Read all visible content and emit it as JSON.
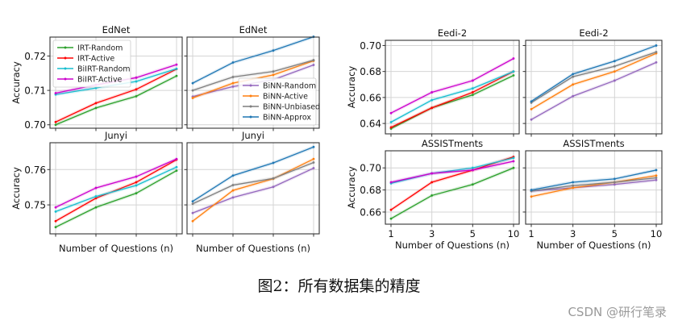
{
  "caption": "图2：所有数据集的精度",
  "watermark": "CSDN @研行笔录",
  "chart_data": [
    {
      "type": "line",
      "title": "EdNet",
      "group": "left",
      "xlabel": "",
      "ylabel": "Accuracy",
      "x": [
        1,
        3,
        5,
        10
      ],
      "xticklabels": [],
      "ylim": [
        0.699,
        0.7255
      ],
      "yticks": [
        0.7,
        0.71,
        0.72
      ],
      "yticklabels": [
        "0.70",
        "0.71",
        "0.72"
      ],
      "legend": {
        "position": "upper left",
        "entries": [
          "IRT-Random",
          "IRT-Active",
          "BiIRT-Random",
          "BiIRT-Active"
        ]
      },
      "series": [
        {
          "name": "IRT-Random",
          "color": "#2ca02c",
          "values": [
            0.7,
            0.7049,
            0.7083,
            0.7142
          ]
        },
        {
          "name": "IRT-Active",
          "color": "#ff0000",
          "values": [
            0.7008,
            0.7063,
            0.7103,
            0.7162
          ]
        },
        {
          "name": "BiIRT-Random",
          "color": "#17becf",
          "values": [
            0.7088,
            0.7107,
            0.7126,
            0.7163
          ]
        },
        {
          "name": "BiIRT-Active",
          "color": "#cc00cc",
          "values": [
            0.7092,
            0.7116,
            0.7137,
            0.7175
          ]
        }
      ]
    },
    {
      "type": "line",
      "title": "EdNet",
      "group": "left",
      "xlabel": "",
      "ylabel": "",
      "x": [
        1,
        3,
        5,
        10
      ],
      "xticklabels": [],
      "ylim": [
        0.699,
        0.7255
      ],
      "yticks": [
        0.7,
        0.71,
        0.72
      ],
      "yticklabels": [],
      "legend": {
        "position": "lower right",
        "entries": [
          "BiNN-Random",
          "BiNN-Active",
          "BiNN-Unbiased",
          "BiNN-Approx"
        ]
      },
      "series": [
        {
          "name": "BiNN-Random",
          "color": "#9467bd",
          "values": [
            0.7082,
            0.7111,
            0.7131,
            0.7174
          ]
        },
        {
          "name": "BiNN-Active",
          "color": "#ff7f0e",
          "values": [
            0.7078,
            0.7121,
            0.7145,
            0.7186
          ]
        },
        {
          "name": "BiNN-Unbiased",
          "color": "#7f7f7f",
          "values": [
            0.71,
            0.7139,
            0.7155,
            0.7188
          ]
        },
        {
          "name": "BiNN-Approx",
          "color": "#1f77b4",
          "values": [
            0.7121,
            0.7181,
            0.7216,
            0.7256
          ]
        }
      ]
    },
    {
      "type": "line",
      "title": "Junyi",
      "group": "left",
      "xlabel": "Number of Questions (n)",
      "ylabel": "Accuracy",
      "x": [
        1,
        3,
        5,
        10
      ],
      "xticklabels": [],
      "ylim": [
        0.7418,
        0.7676
      ],
      "yticks": [
        0.75,
        0.76
      ],
      "yticklabels": [
        "0.75",
        "0.76"
      ],
      "series": [
        {
          "name": "IRT-Random",
          "color": "#2ca02c",
          "values": [
            0.7437,
            0.7493,
            0.7533,
            0.7597
          ]
        },
        {
          "name": "IRT-Active",
          "color": "#ff0000",
          "values": [
            0.7454,
            0.7519,
            0.7564,
            0.7628
          ]
        },
        {
          "name": "BiIRT-Random",
          "color": "#17becf",
          "values": [
            0.7481,
            0.7524,
            0.7555,
            0.7607
          ]
        },
        {
          "name": "BiIRT-Active",
          "color": "#cc00cc",
          "values": [
            0.7493,
            0.7548,
            0.758,
            0.763
          ]
        }
      ]
    },
    {
      "type": "line",
      "title": "Junyi",
      "group": "left",
      "xlabel": "Number of Questions (n)",
      "ylabel": "",
      "x": [
        1,
        3,
        5,
        10
      ],
      "xticklabels": [],
      "ylim": [
        0.7418,
        0.7676
      ],
      "yticks": [
        0.75,
        0.76
      ],
      "yticklabels": [],
      "series": [
        {
          "name": "BiNN-Random",
          "color": "#9467bd",
          "values": [
            0.7477,
            0.7521,
            0.7551,
            0.7604
          ]
        },
        {
          "name": "BiNN-Active",
          "color": "#ff7f0e",
          "values": [
            0.7454,
            0.7541,
            0.7574,
            0.763
          ]
        },
        {
          "name": "BiNN-Unbiased",
          "color": "#7f7f7f",
          "values": [
            0.7503,
            0.7556,
            0.7575,
            0.762
          ]
        },
        {
          "name": "BiNN-Approx",
          "color": "#1f77b4",
          "values": [
            0.751,
            0.7583,
            0.7619,
            0.7664
          ]
        }
      ]
    },
    {
      "type": "line",
      "title": "Eedi-2",
      "group": "right",
      "xlabel": "",
      "ylabel": "Accuracy",
      "x": [
        1,
        3,
        5,
        10
      ],
      "xticklabels": [],
      "ylim": [
        0.632,
        0.704
      ],
      "yticks": [
        0.64,
        0.66,
        0.68,
        0.7
      ],
      "yticklabels": [
        "0.64",
        "0.66",
        "0.68",
        "0.70"
      ],
      "series": [
        {
          "name": "IRT-Random",
          "color": "#2ca02c",
          "values": [
            0.636,
            0.652,
            0.662,
            0.677
          ]
        },
        {
          "name": "IRT-Active",
          "color": "#ff0000",
          "values": [
            0.637,
            0.652,
            0.664,
            0.68
          ]
        },
        {
          "name": "BiIRT-Random",
          "color": "#17becf",
          "values": [
            0.641,
            0.658,
            0.667,
            0.68
          ]
        },
        {
          "name": "BiIRT-Active",
          "color": "#cc00cc",
          "values": [
            0.648,
            0.664,
            0.673,
            0.69
          ]
        }
      ]
    },
    {
      "type": "line",
      "title": "Eedi-2",
      "group": "right",
      "xlabel": "",
      "ylabel": "",
      "x": [
        1,
        3,
        5,
        10
      ],
      "xticklabels": [],
      "ylim": [
        0.632,
        0.704
      ],
      "yticks": [
        0.64,
        0.66,
        0.68,
        0.7
      ],
      "yticklabels": [],
      "series": [
        {
          "name": "BiNN-Random",
          "color": "#9467bd",
          "values": [
            0.643,
            0.661,
            0.673,
            0.687
          ]
        },
        {
          "name": "BiNN-Active",
          "color": "#ff7f0e",
          "values": [
            0.651,
            0.67,
            0.68,
            0.694
          ]
        },
        {
          "name": "BiNN-Unbiased",
          "color": "#7f7f7f",
          "values": [
            0.656,
            0.676,
            0.684,
            0.695
          ]
        },
        {
          "name": "BiNN-Approx",
          "color": "#1f77b4",
          "values": [
            0.657,
            0.678,
            0.688,
            0.7
          ]
        }
      ]
    },
    {
      "type": "line",
      "title": "ASSISTments",
      "group": "right",
      "xlabel": "Number of Questions (n)",
      "ylabel": "Accuracy",
      "x": [
        1,
        3,
        5,
        10
      ],
      "xticklabels": [
        "1",
        "3",
        "5",
        "10"
      ],
      "ylim": [
        0.649,
        0.7155
      ],
      "yticks": [
        0.66,
        0.68,
        0.7
      ],
      "yticklabels": [
        "0.66",
        "0.68",
        "0.70"
      ],
      "series": [
        {
          "name": "IRT-Random",
          "color": "#2ca02c",
          "values": [
            0.654,
            0.675,
            0.685,
            0.7
          ]
        },
        {
          "name": "IRT-Active",
          "color": "#ff0000",
          "values": [
            0.662,
            0.687,
            0.698,
            0.71
          ]
        },
        {
          "name": "BiIRT-Random",
          "color": "#17becf",
          "values": [
            0.686,
            0.695,
            0.7,
            0.709
          ]
        },
        {
          "name": "BiIRT-Active",
          "color": "#cc00cc",
          "values": [
            0.687,
            0.695,
            0.698,
            0.706
          ]
        }
      ]
    },
    {
      "type": "line",
      "title": "ASSISTments",
      "group": "right",
      "xlabel": "Number of Questions (n)",
      "ylabel": "",
      "x": [
        1,
        3,
        5,
        10
      ],
      "xticklabels": [
        "1",
        "3",
        "5",
        "10"
      ],
      "ylim": [
        0.649,
        0.7155
      ],
      "yticks": [
        0.66,
        0.68,
        0.7
      ],
      "yticklabels": [],
      "series": [
        {
          "name": "BiNN-Random",
          "color": "#9467bd",
          "values": [
            0.679,
            0.682,
            0.685,
            0.689
          ]
        },
        {
          "name": "BiNN-Active",
          "color": "#ff7f0e",
          "values": [
            0.674,
            0.682,
            0.687,
            0.693
          ]
        },
        {
          "name": "BiNN-Unbiased",
          "color": "#7f7f7f",
          "values": [
            0.679,
            0.684,
            0.687,
            0.691
          ]
        },
        {
          "name": "BiNN-Approx",
          "color": "#1f77b4",
          "values": [
            0.68,
            0.687,
            0.69,
            0.698
          ]
        }
      ]
    }
  ]
}
